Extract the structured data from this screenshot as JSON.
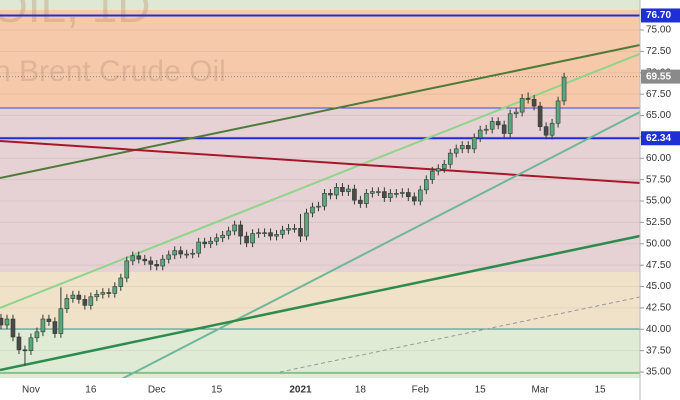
{
  "chart_data": {
    "type": "candlestick",
    "watermark": [
      "OIL, 1D",
      "n Brent Crude Oil"
    ],
    "categories": [
      null,
      null,
      null,
      null,
      null,
      "Nov",
      null,
      null,
      null,
      null,
      null,
      null,
      null,
      null,
      null,
      "16",
      null,
      null,
      null,
      null,
      null,
      null,
      null,
      null,
      null,
      null,
      "Dec",
      null,
      null,
      null,
      null,
      null,
      null,
      null,
      null,
      null,
      "15",
      null,
      null,
      null,
      null,
      null,
      null,
      null,
      null,
      null,
      null,
      null,
      null,
      null,
      "2021",
      null,
      null,
      null,
      null,
      null,
      null,
      null,
      null,
      null,
      "18",
      null,
      null,
      null,
      null,
      null,
      null,
      null,
      null,
      null,
      "Feb",
      null,
      null,
      null,
      null,
      null,
      null,
      null,
      null,
      null,
      "15",
      null,
      null,
      null,
      null,
      null,
      null,
      null,
      null,
      null,
      "Mar",
      null,
      null,
      null,
      null,
      null,
      null,
      null,
      null,
      null,
      "15",
      null,
      null,
      null,
      null
    ],
    "open": [
      41.3,
      40.5,
      41.2,
      39.1,
      37.6,
      37.5,
      39.0,
      39.7,
      41.2,
      40.9,
      39.5,
      42.4,
      43.6,
      44.0,
      43.5,
      42.8,
      43.8,
      44.1,
      44.3,
      44.2,
      45.0,
      46.0,
      48.0,
      48.6,
      48.2,
      48.0,
      47.6,
      47.4,
      48.2,
      48.7,
      49.2,
      48.8,
      48.8,
      48.9,
      50.2,
      50.0,
      50.3,
      50.7,
      51.0,
      51.5,
      52.2,
      50.9,
      50.1,
      51.2,
      51.3,
      51.3,
      50.9,
      51.1,
      51.6,
      51.8,
      51.8,
      50.9,
      53.6,
      54.3,
      54.4,
      55.9,
      55.7,
      56.6,
      56.1,
      56.4,
      55.1,
      54.7,
      55.9,
      56.1,
      56.1,
      55.4,
      55.9,
      55.9,
      56.0,
      55.5,
      55.0,
      56.3,
      57.5,
      58.5,
      58.8,
      59.3,
      60.6,
      61.1,
      61.5,
      61.1,
      62.4,
      63.3,
      63.4,
      64.3,
      63.9,
      62.9,
      65.2,
      65.4,
      67.0,
      66.9,
      66.1,
      63.7,
      62.7,
      64.1,
      66.7,
      null,
      null,
      null,
      null,
      null,
      null,
      null,
      null,
      null,
      null
    ],
    "high": [
      41.8,
      41.7,
      41.7,
      39.6,
      38.1,
      39.5,
      40.2,
      41.7,
      41.7,
      41.4,
      44.9,
      44.1,
      44.5,
      44.5,
      44.0,
      44.3,
      44.6,
      44.8,
      44.8,
      45.5,
      46.5,
      48.5,
      49.1,
      49.1,
      48.7,
      48.5,
      48.1,
      48.7,
      49.2,
      49.7,
      49.7,
      49.3,
      49.4,
      50.7,
      50.7,
      50.8,
      51.2,
      51.5,
      52.0,
      52.7,
      52.7,
      51.4,
      51.7,
      51.8,
      51.8,
      51.8,
      51.6,
      52.1,
      52.3,
      52.3,
      53.5,
      54.1,
      54.8,
      54.9,
      56.4,
      56.4,
      57.1,
      57.1,
      56.9,
      56.9,
      55.6,
      56.4,
      56.6,
      56.6,
      56.6,
      56.4,
      56.4,
      56.5,
      56.5,
      56.0,
      56.8,
      58.0,
      59.0,
      59.3,
      59.8,
      61.1,
      61.6,
      62.0,
      62.0,
      62.9,
      63.8,
      63.9,
      64.8,
      64.8,
      64.4,
      65.7,
      65.9,
      67.5,
      67.7,
      67.4,
      66.6,
      64.2,
      64.6,
      67.2,
      70.0,
      null,
      null,
      null,
      null,
      null,
      null,
      null,
      null,
      null,
      null
    ],
    "low": [
      40.0,
      40.0,
      38.6,
      37.1,
      35.8,
      37.0,
      38.5,
      39.2,
      40.4,
      39.0,
      39.0,
      41.9,
      43.1,
      43.0,
      42.3,
      42.3,
      43.3,
      43.6,
      43.7,
      43.7,
      44.5,
      45.5,
      47.5,
      47.7,
      47.5,
      46.9,
      46.9,
      46.9,
      47.7,
      48.2,
      48.3,
      48.3,
      48.3,
      48.4,
      49.5,
      49.5,
      49.8,
      50.2,
      50.5,
      51.0,
      49.9,
      49.6,
      49.6,
      50.7,
      50.8,
      50.4,
      50.4,
      50.6,
      51.1,
      51.3,
      50.2,
      50.4,
      53.1,
      53.8,
      53.9,
      55.2,
      55.2,
      55.6,
      55.6,
      54.6,
      54.2,
      54.2,
      55.4,
      55.6,
      54.9,
      54.9,
      55.4,
      55.4,
      55.0,
      54.5,
      54.5,
      55.8,
      57.0,
      58.0,
      58.3,
      58.8,
      60.1,
      60.6,
      60.6,
      60.6,
      61.9,
      62.8,
      62.9,
      63.4,
      62.4,
      62.4,
      64.7,
      64.9,
      66.4,
      65.6,
      63.2,
      62.2,
      62.2,
      63.6,
      66.2,
      null,
      null,
      null,
      null,
      null,
      null,
      null,
      null,
      null,
      null
    ],
    "close": [
      40.5,
      41.2,
      39.1,
      37.6,
      37.5,
      39.0,
      39.7,
      41.2,
      40.9,
      39.5,
      42.4,
      43.6,
      44.0,
      43.5,
      42.8,
      43.8,
      44.1,
      44.3,
      44.2,
      45.0,
      46.0,
      48.0,
      48.6,
      48.2,
      48.0,
      47.6,
      47.4,
      48.2,
      48.7,
      49.2,
      48.8,
      48.8,
      48.9,
      50.2,
      50.0,
      50.3,
      50.7,
      51.0,
      51.5,
      52.2,
      50.9,
      50.1,
      51.2,
      51.3,
      51.3,
      50.9,
      51.1,
      51.6,
      51.8,
      51.8,
      50.9,
      53.6,
      54.3,
      54.4,
      55.9,
      55.7,
      56.6,
      56.1,
      56.4,
      55.1,
      54.7,
      55.9,
      56.1,
      56.1,
      55.4,
      55.9,
      55.9,
      56.0,
      55.5,
      55.0,
      56.3,
      57.5,
      58.5,
      58.8,
      59.3,
      60.6,
      61.1,
      61.5,
      61.1,
      62.4,
      63.3,
      63.4,
      64.3,
      63.9,
      62.9,
      65.2,
      65.4,
      67.0,
      66.9,
      66.1,
      63.7,
      62.7,
      64.1,
      66.7,
      69.5,
      null,
      null,
      null,
      null,
      null,
      null,
      null,
      null,
      null,
      null
    ],
    "up_color": "#5aa77d",
    "down_color": "#4a4a4a",
    "ylim": [
      31.73,
      78.51
    ],
    "yticks": [
      {
        "value": 35,
        "label": "35.00"
      },
      {
        "value": 37.5,
        "label": "37.50"
      },
      {
        "value": 40,
        "label": "40.00"
      },
      {
        "value": 42.5,
        "label": "42.50"
      },
      {
        "value": 45,
        "label": "45.00"
      },
      {
        "value": 47.5,
        "label": "47.50"
      },
      {
        "value": 50,
        "label": "50.00"
      },
      {
        "value": 52.5,
        "label": "52.50"
      },
      {
        "value": 55,
        "label": "55.00"
      },
      {
        "value": 57.5,
        "label": "57.50"
      },
      {
        "value": 60,
        "label": "60.00"
      },
      {
        "value": 62.5,
        "label": "62.50"
      },
      {
        "value": 65,
        "label": "65.00"
      },
      {
        "value": 67.5,
        "label": "67.50"
      },
      {
        "value": 70,
        "label": "70.00"
      },
      {
        "value": 72.5,
        "label": "72.50"
      },
      {
        "value": 75,
        "label": "75.00"
      }
    ],
    "price_lines": [
      {
        "value": 76.7,
        "label": "76.70",
        "color": "#1e2fd6"
      },
      {
        "value": 69.55,
        "label": "69.55",
        "color": "#8a8a8a"
      },
      {
        "value": 62.34,
        "label": "62.34",
        "color": "#1e2fd6"
      }
    ]
  }
}
